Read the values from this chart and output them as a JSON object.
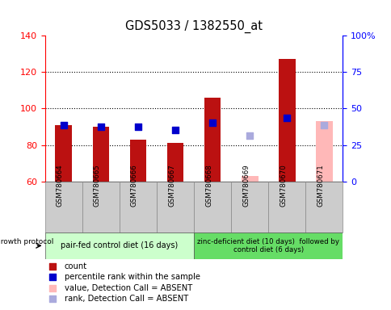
{
  "title": "GDS5033 / 1382550_at",
  "samples": [
    "GSM780664",
    "GSM780665",
    "GSM780666",
    "GSM780667",
    "GSM780668",
    "GSM780669",
    "GSM780670",
    "GSM780671"
  ],
  "count_values": [
    91,
    90,
    83,
    81,
    106,
    null,
    127,
    null
  ],
  "count_absent_values": [
    null,
    null,
    null,
    null,
    null,
    63,
    null,
    93
  ],
  "percentile_rank": [
    91,
    90,
    90,
    88,
    92,
    null,
    95,
    null
  ],
  "percentile_rank_absent": [
    null,
    null,
    null,
    null,
    null,
    85,
    null,
    91
  ],
  "ylim_left": [
    60,
    140
  ],
  "yticks_left": [
    60,
    80,
    100,
    120,
    140
  ],
  "ytick_labels_right": [
    "0",
    "25",
    "50",
    "75",
    "100%"
  ],
  "group1_label": "pair-fed control diet (16 days)",
  "group2_label": "zinc-deficient diet (10 days)  followed by\ncontrol diet (6 days)",
  "growth_protocol_label": "growth protocol",
  "bar_color_present": "#bb1111",
  "bar_color_absent": "#ffb8b8",
  "dot_color_present": "#0000cc",
  "dot_color_absent": "#aaaadd",
  "group1_color": "#ccffcc",
  "group2_color": "#66dd66",
  "sample_bg_color": "#cccccc",
  "bar_width": 0.45,
  "dot_size": 30,
  "legend_items": [
    [
      "#bb1111",
      "count"
    ],
    [
      "#0000cc",
      "percentile rank within the sample"
    ],
    [
      "#ffb8b8",
      "value, Detection Call = ABSENT"
    ],
    [
      "#aaaadd",
      "rank, Detection Call = ABSENT"
    ]
  ]
}
